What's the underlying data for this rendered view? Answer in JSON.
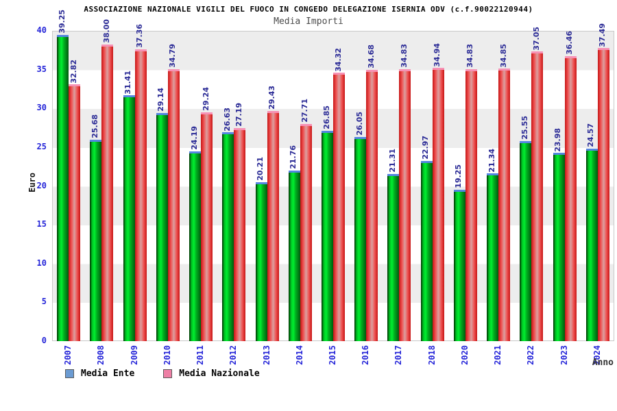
{
  "header": {
    "title": "ASSOCIAZIONE NAZIONALE VIGILI DEL FUOCO IN CONGEDO DELEGAZIONE ISERNIA ODV (c.f.90022120944)",
    "subtitle": "Media Importi"
  },
  "chart_data": {
    "type": "bar",
    "title": "Media Importi",
    "xlabel": "Anno",
    "ylabel": "Euro",
    "ylim": [
      0,
      40
    ],
    "yticks": [
      0,
      5,
      10,
      15,
      20,
      25,
      30,
      35,
      40
    ],
    "grid": "alternating horizontal bands every 5 units, light gray / white",
    "legend_position": "bottom-left",
    "categories": [
      "2007",
      "2008",
      "2009",
      "2010",
      "2011",
      "2012",
      "2013",
      "2014",
      "2015",
      "2016",
      "2017",
      "2018",
      "2020",
      "2021",
      "2022",
      "2023",
      "2024"
    ],
    "series": [
      {
        "name": "Media Ente",
        "values": [
          39.25,
          25.68,
          31.41,
          29.14,
          24.19,
          26.63,
          20.21,
          21.76,
          26.85,
          26.05,
          21.31,
          22.97,
          19.25,
          21.34,
          25.55,
          23.98,
          24.57
        ],
        "labels": [
          "39.25",
          "25.68",
          "31.41",
          "29.14",
          "24.19",
          "26.63",
          "20.21",
          "21.76",
          "26.85",
          "26.05",
          "21.31",
          "22.97",
          "19.25",
          "21.34",
          "25.55",
          "23.98",
          "24.57"
        ],
        "legend_color": "#6b9bd2",
        "cap_color": "#5585e0",
        "gradient": [
          "#002f00",
          "#00c223",
          "#00ef30",
          "#00b01f",
          "#008617",
          "#005a0e"
        ]
      },
      {
        "name": "Media Nazionale",
        "values": [
          32.82,
          38.0,
          37.36,
          34.79,
          29.24,
          27.19,
          29.43,
          27.71,
          34.32,
          34.68,
          34.83,
          34.94,
          34.83,
          34.85,
          37.05,
          36.46,
          37.49
        ],
        "labels": [
          "32.82",
          "38.00",
          "37.36",
          "34.79",
          "29.24",
          "27.19",
          "29.43",
          "27.71",
          "34.32",
          "34.68",
          "34.83",
          "34.94",
          "34.83",
          "34.85",
          "37.05",
          "36.46",
          "37.49"
        ],
        "legend_color": "#ee7fa5",
        "cap_color": "#f791b4",
        "gradient": [
          "#c61616",
          "#ef5050",
          "#dba0a0",
          "#ef5050",
          "#c61616"
        ]
      }
    ]
  },
  "colors": {
    "band_gray": "#ededed",
    "plot_border": "#c9c9c9",
    "axis_text_blue": "#2424d8",
    "value_label_navy": "#2b2b96"
  }
}
